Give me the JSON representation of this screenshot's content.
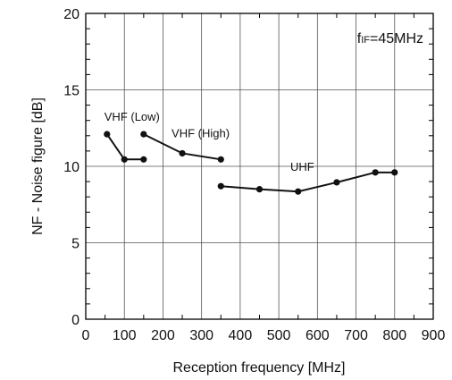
{
  "chart_data": {
    "type": "line",
    "xlabel": "Reception frequency [MHz]",
    "ylabel": "NF - Noise figure [dB]",
    "xlim": [
      0,
      900
    ],
    "ylim": [
      0,
      20
    ],
    "x_ticks": [
      0,
      100,
      200,
      300,
      400,
      500,
      600,
      700,
      800,
      900
    ],
    "y_ticks": [
      0,
      5,
      10,
      15,
      20
    ],
    "x_tick_labels": [
      "0",
      "100",
      "200",
      "300",
      "400",
      "500",
      "600",
      "700",
      "800",
      "900"
    ],
    "y_tick_labels": [
      "0",
      "5",
      "10",
      "15",
      "20"
    ],
    "grid": "on (major every 100 MHz / 5 dB, minor every 50 MHz / 1 dB)",
    "annotation": {
      "prefix": "f",
      "subscript": "IF",
      "suffix": "=45MHz"
    },
    "series": [
      {
        "name": "VHF (Low)",
        "x": [
          55,
          100,
          150
        ],
        "y": [
          12.1,
          10.45,
          10.45
        ]
      },
      {
        "name": "VHF (High)",
        "x": [
          150,
          250,
          350
        ],
        "y": [
          12.1,
          10.85,
          10.45
        ]
      },
      {
        "name": "UHF",
        "x": [
          350,
          450,
          550,
          650,
          750,
          800
        ],
        "y": [
          8.7,
          8.5,
          8.35,
          8.95,
          9.6,
          9.6
        ]
      }
    ],
    "line_color": "#111111"
  }
}
